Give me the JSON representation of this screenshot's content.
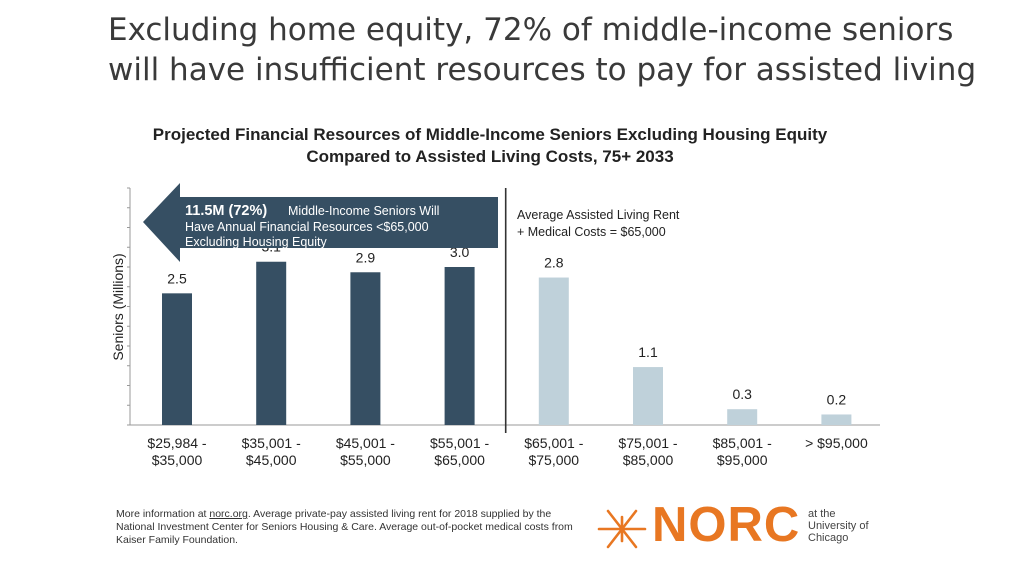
{
  "headline": "Excluding home equity, 72% of middle-income seniors will have insufficient resources to pay for assisted living",
  "chart_data": {
    "type": "bar",
    "title": "Projected Financial Resources of Middle-Income Seniors Excluding Housing Equity Compared to Assisted Living Costs, 75+ 2033",
    "xlabel": "",
    "ylabel": "Seniors (Millions)",
    "ylim": [
      0,
      4.5
    ],
    "grid": false,
    "categories": [
      [
        "$25,984 -",
        "$35,000"
      ],
      [
        "$35,001 -",
        "$45,000"
      ],
      [
        "$45,001 -",
        "$55,000"
      ],
      [
        "$55,001 -",
        "$65,000"
      ],
      [
        "$65,001 -",
        "$75,000"
      ],
      [
        "$75,001 -",
        "$85,000"
      ],
      [
        "$85,001 -",
        "$95,000"
      ],
      [
        "> $95,000"
      ]
    ],
    "values": [
      2.5,
      3.1,
      2.9,
      3.0,
      2.8,
      1.1,
      0.3,
      0.2
    ],
    "value_labels": [
      "2.5",
      "3.1",
      "2.9",
      "3.0",
      "2.8",
      "1.1",
      "0.3",
      "0.2"
    ],
    "colors": {
      "below_threshold": "#364f63",
      "above_threshold": "#bfd1da",
      "arrow": "#364f63",
      "divider": "#333333"
    },
    "threshold_after_index": 3,
    "arrow_annotation": {
      "bold": "11.5M (72%)",
      "lines": [
        "Middle-Income Seniors Will",
        "Have Annual Financial Resources <$65,000",
        "Excluding Housing Equity"
      ]
    },
    "threshold_annotation": [
      "Average Assisted Living Rent",
      "+ Medical Costs = $65,000"
    ]
  },
  "footnote": {
    "prefix": "More information at ",
    "link": "norc.org",
    "text": ". Average private-pay assisted living rent for 2018 supplied by the National Investment Center for Seniors Housing & Care. Average out-of-pocket medical costs from Kaiser Family Foundation."
  },
  "logo": {
    "word": "NORC",
    "sub": [
      "at the",
      "University of",
      "Chicago"
    ],
    "color": "#e87722"
  }
}
